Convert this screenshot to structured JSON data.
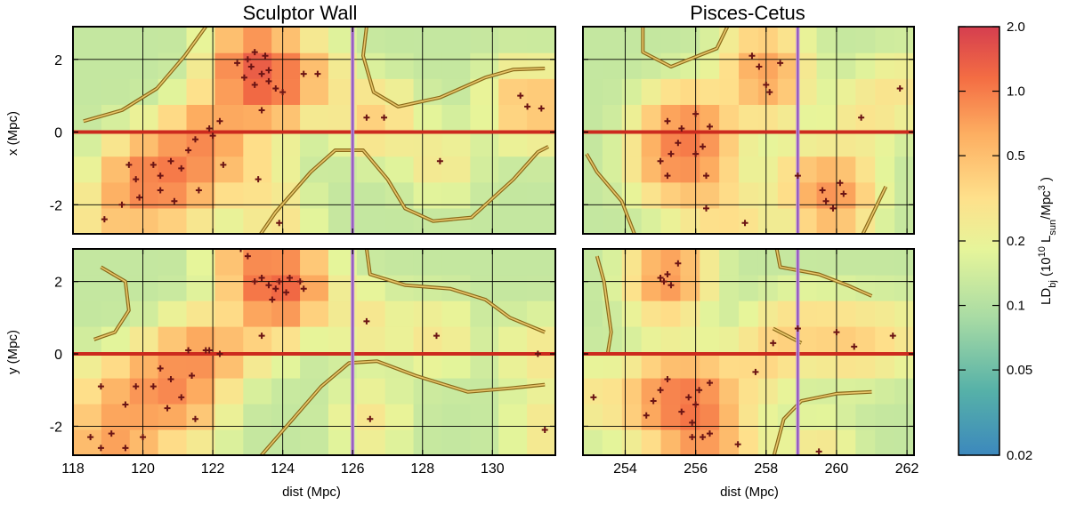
{
  "chart_data": [
    {
      "type": "heatmap",
      "title": "Sculptor Wall",
      "panel": "top-left",
      "ylabel": "x (Mpc)",
      "xlabel": "",
      "xlim": [
        118,
        131.8
      ],
      "ylim": [
        -2.8,
        2.9
      ],
      "x_ticks": [
        "118",
        "120",
        "122",
        "124",
        "126",
        "128",
        "130"
      ],
      "y_ticks": [
        "2",
        "0",
        "-2"
      ],
      "grid": true,
      "vline": 126,
      "hline": 0,
      "points": [
        [
          122.7,
          1.9
        ],
        [
          123,
          2
        ],
        [
          123.2,
          2.2
        ],
        [
          123.5,
          2.1
        ],
        [
          123.1,
          1.8
        ],
        [
          123.4,
          1.6
        ],
        [
          123.6,
          1.4
        ],
        [
          123.2,
          1.3
        ],
        [
          122.9,
          1.5
        ],
        [
          123.8,
          1.2
        ],
        [
          124,
          1.1
        ],
        [
          123.6,
          1.7
        ],
        [
          124.6,
          1.6
        ],
        [
          125,
          1.6
        ],
        [
          123.4,
          0.6
        ],
        [
          122.2,
          0.3
        ],
        [
          121.9,
          0.1
        ],
        [
          122,
          -0.1
        ],
        [
          121.5,
          -0.2
        ],
        [
          121.3,
          -0.5
        ],
        [
          120.8,
          -0.8
        ],
        [
          121.1,
          -1
        ],
        [
          120.5,
          -1.2
        ],
        [
          120.3,
          -0.9
        ],
        [
          119.6,
          -0.9
        ],
        [
          119.8,
          -1.3
        ],
        [
          120.5,
          -1.6
        ],
        [
          119.9,
          -1.8
        ],
        [
          120.9,
          -1.9
        ],
        [
          121.6,
          -1.6
        ],
        [
          122.3,
          -0.9
        ],
        [
          123.3,
          -1.3
        ],
        [
          119.4,
          -2
        ],
        [
          118.9,
          -2.4
        ],
        [
          123.9,
          -2.5
        ],
        [
          126.4,
          0.4
        ],
        [
          126.9,
          0.4
        ],
        [
          128.5,
          -0.8
        ],
        [
          130.8,
          1
        ],
        [
          131,
          0.7
        ],
        [
          131.4,
          0.65
        ]
      ],
      "contours": [
        [
          [
            118.3,
            0.3
          ],
          [
            119.4,
            0.6
          ],
          [
            120.4,
            1.2
          ],
          [
            121.2,
            2.1
          ],
          [
            121.8,
            2.9
          ]
        ],
        [
          [
            126.4,
            2.9
          ],
          [
            126.3,
            2.1
          ],
          [
            126.6,
            1.1
          ],
          [
            127.3,
            0.7
          ],
          [
            128.5,
            0.95
          ],
          [
            129.8,
            1.5
          ],
          [
            130.6,
            1.72
          ],
          [
            131.5,
            1.75
          ]
        ],
        [
          [
            123.3,
            -2.9
          ],
          [
            123.8,
            -2.2
          ],
          [
            124.8,
            -1.1
          ],
          [
            125.5,
            -0.5
          ],
          [
            126.3,
            -0.5
          ],
          [
            127,
            -1.3
          ],
          [
            127.5,
            -2.1
          ],
          [
            128.3,
            -2.45
          ],
          [
            129.4,
            -2.35
          ],
          [
            130.6,
            -1.3
          ],
          [
            131.3,
            -0.55
          ],
          [
            131.6,
            -0.4
          ]
        ]
      ]
    },
    {
      "type": "heatmap",
      "title": "Pisces-Cetus",
      "panel": "top-right",
      "ylabel": "",
      "xlabel": "",
      "xlim": [
        252.8,
        262.2
      ],
      "ylim": [
        -2.8,
        2.9
      ],
      "x_ticks": [
        "254",
        "256",
        "258",
        "260",
        "262"
      ],
      "y_ticks": [],
      "grid": true,
      "vline": 258.9,
      "hline": 0,
      "points": [
        [
          257.6,
          2.1
        ],
        [
          257.8,
          1.8
        ],
        [
          258.4,
          1.9
        ],
        [
          258,
          1.3
        ],
        [
          258.1,
          1.1
        ],
        [
          256,
          0.5
        ],
        [
          255.2,
          0.3
        ],
        [
          255.6,
          0.1
        ],
        [
          256.4,
          0.15
        ],
        [
          255.5,
          -0.3
        ],
        [
          256.2,
          -0.4
        ],
        [
          256,
          -0.6
        ],
        [
          255.3,
          -0.6
        ],
        [
          255,
          -0.8
        ],
        [
          255.2,
          -1.2
        ],
        [
          256.3,
          -1.2
        ],
        [
          256.3,
          -2.1
        ],
        [
          257.4,
          -2.5
        ],
        [
          258.9,
          -1.2
        ],
        [
          259.6,
          -1.6
        ],
        [
          259.7,
          -1.9
        ],
        [
          260.1,
          -1.4
        ],
        [
          259.9,
          -2.1
        ],
        [
          260.2,
          -1.7
        ],
        [
          261.8,
          1.2
        ],
        [
          260.7,
          0.4
        ]
      ],
      "contours": [
        [
          [
            254.5,
            2.9
          ],
          [
            254.5,
            2.2
          ],
          [
            255.3,
            1.8
          ],
          [
            256.6,
            2.3
          ],
          [
            256.9,
            2.9
          ]
        ],
        [
          [
            252.9,
            -0.6
          ],
          [
            253.2,
            -1.1
          ],
          [
            253.9,
            -1.9
          ],
          [
            254.3,
            -2.9
          ]
        ],
        [
          [
            260.7,
            -2.9
          ],
          [
            261.1,
            -2.1
          ],
          [
            261.4,
            -1.5
          ]
        ]
      ]
    },
    {
      "type": "heatmap",
      "title": "",
      "panel": "bottom-left",
      "ylabel": "y (Mpc)",
      "xlabel": "dist (Mpc)",
      "xlim": [
        118,
        131.8
      ],
      "ylim": [
        -2.8,
        2.9
      ],
      "x_ticks": [
        "118",
        "120",
        "122",
        "124",
        "126",
        "128",
        "130"
      ],
      "y_ticks": [
        "2",
        "0",
        "-2"
      ],
      "grid": true,
      "vline": 126,
      "hline": 0,
      "points": [
        [
          123.2,
          2
        ],
        [
          123.4,
          2.1
        ],
        [
          123.6,
          1.9
        ],
        [
          123.9,
          2
        ],
        [
          124.2,
          2.1
        ],
        [
          124.5,
          2
        ],
        [
          123.8,
          1.8
        ],
        [
          123,
          2.7
        ],
        [
          122.8,
          2.9
        ],
        [
          123.7,
          1.5
        ],
        [
          124.1,
          1.7
        ],
        [
          124.6,
          1.8
        ],
        [
          123.4,
          0.5
        ],
        [
          121.8,
          0.1
        ],
        [
          121.9,
          0.1
        ],
        [
          122.2,
          0
        ],
        [
          121.3,
          0.1
        ],
        [
          121.4,
          -0.6
        ],
        [
          120.8,
          -0.7
        ],
        [
          120.5,
          -0.4
        ],
        [
          120.3,
          -0.9
        ],
        [
          121.1,
          -1.2
        ],
        [
          120.7,
          -1.5
        ],
        [
          121.5,
          -1.8
        ],
        [
          119.8,
          -0.9
        ],
        [
          119.5,
          -1.4
        ],
        [
          118.8,
          -0.9
        ],
        [
          119.1,
          -2.2
        ],
        [
          119.5,
          -2.6
        ],
        [
          118.5,
          -2.3
        ],
        [
          118.8,
          -2.6
        ],
        [
          120,
          -2.3
        ],
        [
          126.5,
          -1.8
        ],
        [
          126.4,
          0.9
        ],
        [
          128.4,
          0.5
        ],
        [
          131.3,
          0
        ],
        [
          131.5,
          -2.1
        ]
      ],
      "contours": [
        [
          [
            118.8,
            2.4
          ],
          [
            119.5,
            2
          ],
          [
            119.6,
            1.2
          ],
          [
            119.2,
            0.6
          ],
          [
            118.6,
            0.4
          ]
        ],
        [
          [
            126.4,
            2.9
          ],
          [
            126.5,
            2.2
          ],
          [
            127.5,
            1.9
          ],
          [
            128.8,
            1.8
          ],
          [
            129.8,
            1.5
          ],
          [
            130.5,
            1
          ],
          [
            131.5,
            0.6
          ]
        ],
        [
          [
            123.3,
            -2.9
          ],
          [
            124.2,
            -1.9
          ],
          [
            125.1,
            -0.9
          ],
          [
            125.9,
            -0.25
          ],
          [
            126.7,
            -0.2
          ],
          [
            127.8,
            -0.6
          ],
          [
            129.3,
            -1.05
          ],
          [
            130.5,
            -0.95
          ],
          [
            131.5,
            -0.85
          ]
        ]
      ]
    },
    {
      "type": "heatmap",
      "title": "",
      "panel": "bottom-right",
      "ylabel": "",
      "xlabel": "dist (Mpc)",
      "xlim": [
        252.8,
        262.2
      ],
      "ylim": [
        -2.8,
        2.9
      ],
      "x_ticks": [
        "254",
        "256",
        "258",
        "260",
        "262"
      ],
      "y_ticks": [],
      "grid": true,
      "vline": 258.9,
      "hline": 0,
      "points": [
        [
          255,
          2.1
        ],
        [
          255.1,
          2
        ],
        [
          255.3,
          1.9
        ],
        [
          255.5,
          2.5
        ],
        [
          255.2,
          2.2
        ],
        [
          256.4,
          -0.8
        ],
        [
          256.1,
          -1
        ],
        [
          255.8,
          -1.2
        ],
        [
          256,
          -1.4
        ],
        [
          255.6,
          -1.6
        ],
        [
          255.9,
          -1.9
        ],
        [
          256.2,
          -2.3
        ],
        [
          256.4,
          -2.2
        ],
        [
          255.9,
          -2.3
        ],
        [
          255,
          -1
        ],
        [
          254.8,
          -1.3
        ],
        [
          254.6,
          -1.7
        ],
        [
          255.2,
          -0.7
        ],
        [
          253.1,
          -1.2
        ],
        [
          257.7,
          -0.5
        ],
        [
          258.2,
          0.3
        ],
        [
          258.9,
          0.7
        ],
        [
          259.5,
          -2.7
        ],
        [
          257.2,
          -2.5
        ],
        [
          260,
          0.6
        ],
        [
          260.5,
          0.2
        ],
        [
          261.6,
          0.5
        ]
      ],
      "contours": [
        [
          [
            253.2,
            2.7
          ],
          [
            253.4,
            2
          ],
          [
            253.6,
            0.6
          ],
          [
            253.5,
            0
          ]
        ],
        [
          [
            258.3,
            2.9
          ],
          [
            258.4,
            2.4
          ],
          [
            259.5,
            2.2
          ],
          [
            260.3,
            1.9
          ],
          [
            261,
            1.6
          ]
        ],
        [
          [
            258.2,
            0.7
          ],
          [
            259,
            0.3
          ]
        ],
        [
          [
            258.2,
            -2.9
          ],
          [
            258.5,
            -1.8
          ],
          [
            259,
            -1.3
          ],
          [
            260,
            -1.1
          ],
          [
            261,
            -1.05
          ]
        ]
      ]
    }
  ],
  "colorbar": {
    "label": "LD",
    "label_sub": "bj",
    "label_unit_open": " (10",
    "label_exp": "10",
    "label_lsun": " L",
    "label_lsun_sub": "sun",
    "label_per": "/Mpc",
    "label_cube": "3",
    "label_close": " )",
    "ticks": [
      "2.0",
      "1.0",
      "0.5",
      "0.2",
      "0.1",
      "0.05",
      "0.02"
    ],
    "tick_values": [
      2.0,
      1.0,
      0.5,
      0.2,
      0.1,
      0.05,
      0.02
    ],
    "min": 0.02,
    "max": 2.0,
    "scale": "log"
  },
  "colors": {
    "colormap": [
      "#3c88bd",
      "#56b1a8",
      "#a8dba4",
      "#e6f59a",
      "#fee08b",
      "#fdae61",
      "#f46d43",
      "#d53e4f"
    ],
    "markers": "#6b1414",
    "contour_outer": "#8a6a1a",
    "contour_inner": "#e8c66a",
    "hline": "#cc2a1e",
    "vline": "#b98ad9"
  }
}
